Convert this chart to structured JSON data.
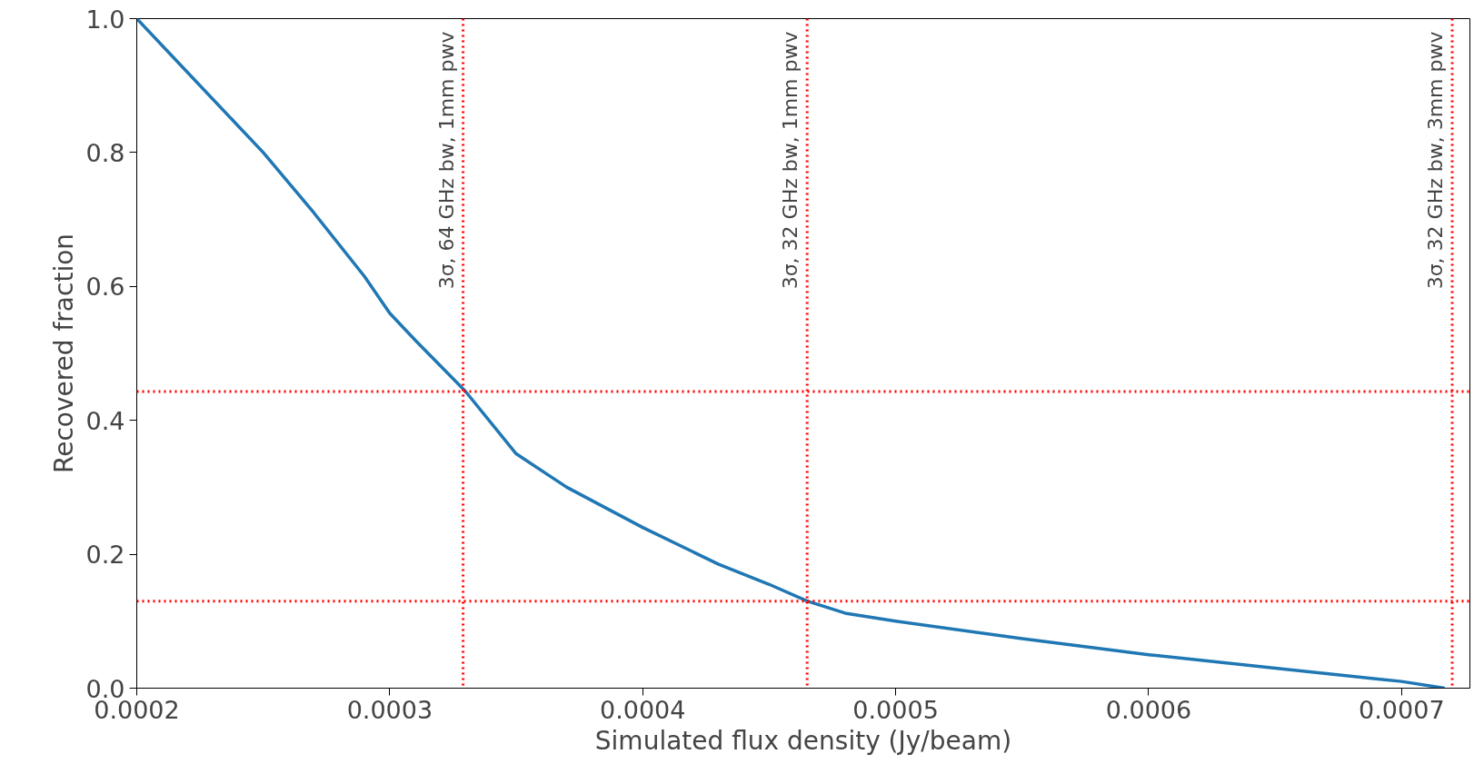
{
  "chart_data": {
    "type": "line",
    "xlabel": "Simulated flux density (Jy/beam)",
    "ylabel": "Recovered fraction",
    "series": [
      {
        "color": "#1f77b4",
        "x": [
          0.0002,
          0.00022,
          0.00025,
          0.00027,
          0.00029,
          0.0003,
          0.00031,
          0.00033,
          0.00035,
          0.00037,
          0.0004,
          0.00043,
          0.00045,
          0.000465,
          0.00048,
          0.0005,
          0.00055,
          0.0006,
          0.00065,
          0.0007,
          0.000717
        ],
        "values": [
          1.0,
          0.92,
          0.8,
          0.71,
          0.615,
          0.56,
          0.52,
          0.443,
          0.35,
          0.3,
          0.24,
          0.185,
          0.155,
          0.13,
          0.112,
          0.1,
          0.074,
          0.05,
          0.03,
          0.01,
          0.0
        ]
      }
    ],
    "xlim": [
      0.0002,
      0.000727
    ],
    "ylim": [
      0.0,
      1.0
    ],
    "xticks": [
      {
        "value": 0.0002,
        "label": "0.0002"
      },
      {
        "value": 0.0003,
        "label": "0.0003"
      },
      {
        "value": 0.0004,
        "label": "0.0004"
      },
      {
        "value": 0.0005,
        "label": "0.0005"
      },
      {
        "value": 0.0006,
        "label": "0.0006"
      },
      {
        "value": 0.0007,
        "label": "0.0007"
      }
    ],
    "yticks": [
      {
        "value": 0.0,
        "label": "0.0"
      },
      {
        "value": 0.2,
        "label": "0.2"
      },
      {
        "value": 0.4,
        "label": "0.4"
      },
      {
        "value": 0.6,
        "label": "0.6"
      },
      {
        "value": 0.8,
        "label": "0.8"
      },
      {
        "value": 1.0,
        "label": "1.0"
      }
    ],
    "ref_lines": [
      {
        "axis": "x",
        "value": 0.000329,
        "label": "3σ, 64 GHz bw, 1mm pwv",
        "color": "#ff0000",
        "line_style": "dotted"
      },
      {
        "axis": "x",
        "value": 0.000465,
        "label": "3σ, 32 GHz bw, 1mm pwv",
        "color": "#ff0000",
        "line_style": "dotted"
      },
      {
        "axis": "x",
        "value": 0.00072,
        "label": "3σ, 32 GHz bw, 3mm pwv",
        "color": "#ff0000",
        "line_style": "dotted"
      },
      {
        "axis": "y",
        "value": 0.443,
        "color": "#ff0000",
        "line_style": "dotted"
      },
      {
        "axis": "y",
        "value": 0.13,
        "color": "#ff0000",
        "line_style": "dotted"
      }
    ],
    "line_style": "solid"
  }
}
